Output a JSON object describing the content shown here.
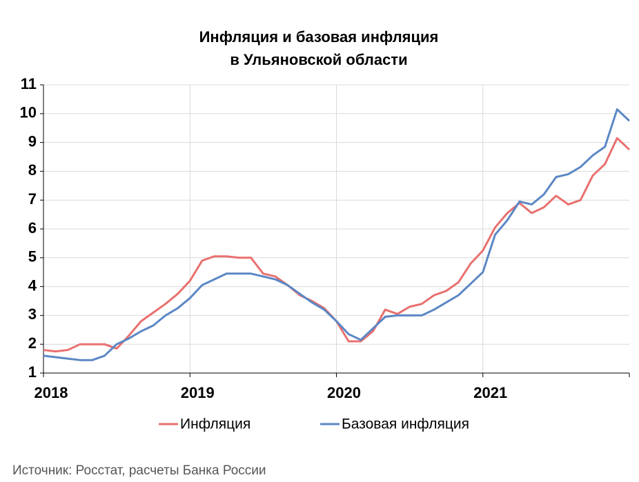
{
  "chart_data": {
    "type": "line",
    "title": [
      "Инфляция и базовая инфляция",
      "в Ульяновской области"
    ],
    "source": "Источник: Росстат, расчеты Банка России",
    "x": [
      2018,
      2018.0833,
      2018.1667,
      2018.25,
      2018.3333,
      2018.4167,
      2018.5,
      2018.5833,
      2018.6667,
      2018.75,
      2018.8333,
      2018.9167,
      2019,
      2019.0833,
      2019.1667,
      2019.25,
      2019.3333,
      2019.4167,
      2019.5,
      2019.5833,
      2019.6667,
      2019.75,
      2019.8333,
      2019.9167,
      2020,
      2020.0833,
      2020.1667,
      2020.25,
      2020.3333,
      2020.4167,
      2020.5,
      2020.5833,
      2020.6667,
      2020.75,
      2020.8333,
      2020.9167,
      2021,
      2021.0833,
      2021.1667,
      2021.25,
      2021.3333,
      2021.4167,
      2021.5,
      2021.5833,
      2021.6667,
      2021.75,
      2021.8333,
      2021.9167,
      2022
    ],
    "series": [
      {
        "name": "Инфляция",
        "color": "#e8706f",
        "values": [
          1.8,
          1.75,
          1.8,
          2.0,
          2.0,
          2.0,
          1.85,
          2.3,
          2.8,
          3.1,
          3.4,
          3.75,
          4.2,
          4.9,
          5.05,
          5.05,
          5.0,
          5.0,
          4.45,
          4.35,
          4.05,
          3.7,
          3.5,
          3.25,
          2.8,
          2.1,
          2.1,
          2.45,
          3.2,
          3.05,
          3.3,
          3.4,
          3.7,
          3.85,
          4.15,
          4.8,
          5.25,
          6.05,
          6.55,
          6.9,
          6.55,
          6.75,
          7.15,
          6.85,
          7.0,
          7.85,
          8.25,
          9.15,
          8.75
        ]
      },
      {
        "name": "Базовая инфляция",
        "color": "#5b87c5",
        "values": [
          1.6,
          1.55,
          1.5,
          1.45,
          1.45,
          1.6,
          2.0,
          2.2,
          2.45,
          2.65,
          3.0,
          3.25,
          3.6,
          4.05,
          4.25,
          4.45,
          4.45,
          4.45,
          4.35,
          4.25,
          4.05,
          3.75,
          3.45,
          3.2,
          2.8,
          2.35,
          2.15,
          2.55,
          2.95,
          3.0,
          3.0,
          3.0,
          3.2,
          3.45,
          3.7,
          4.1,
          4.5,
          5.8,
          6.3,
          6.95,
          6.85,
          7.2,
          7.8,
          7.9,
          8.15,
          8.55,
          8.85,
          10.15,
          9.75
        ]
      }
    ],
    "xlim": [
      2018,
      2022
    ],
    "xticks": [
      2018,
      2019,
      2020,
      2021
    ],
    "ylim": [
      1,
      11
    ],
    "yticks": [
      1,
      2,
      3,
      4,
      5,
      6,
      7,
      8,
      9,
      10,
      11
    ],
    "grid": true,
    "legend": "bottom"
  }
}
